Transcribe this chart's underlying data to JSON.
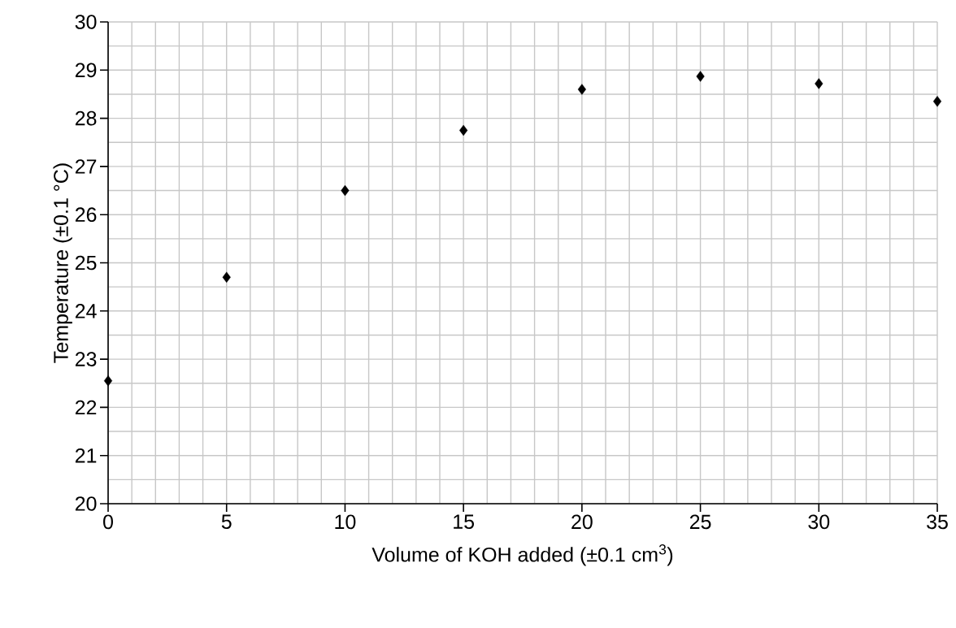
{
  "chart_data": {
    "type": "scatter",
    "xlabel": "Volume of KOH added (±0.1 cm$^{3}$)",
    "ylabel": "Temperature (±0.1 °C)",
    "x": [
      0,
      5,
      10,
      15,
      20,
      25,
      30,
      35
    ],
    "series": [
      {
        "color": "#000000",
        "values": [
          22.55,
          24.7,
          26.5,
          27.75,
          28.6,
          28.87,
          28.72,
          28.35
        ]
      }
    ],
    "xlim": [
      0,
      35
    ],
    "ylim": [
      20,
      30
    ],
    "xticks": [
      0,
      5,
      10,
      15,
      20,
      25,
      30,
      35
    ],
    "yticks": [
      20,
      21,
      22,
      23,
      24,
      25,
      26,
      27,
      28,
      29,
      30
    ],
    "grid": true,
    "marker": "diamond"
  }
}
